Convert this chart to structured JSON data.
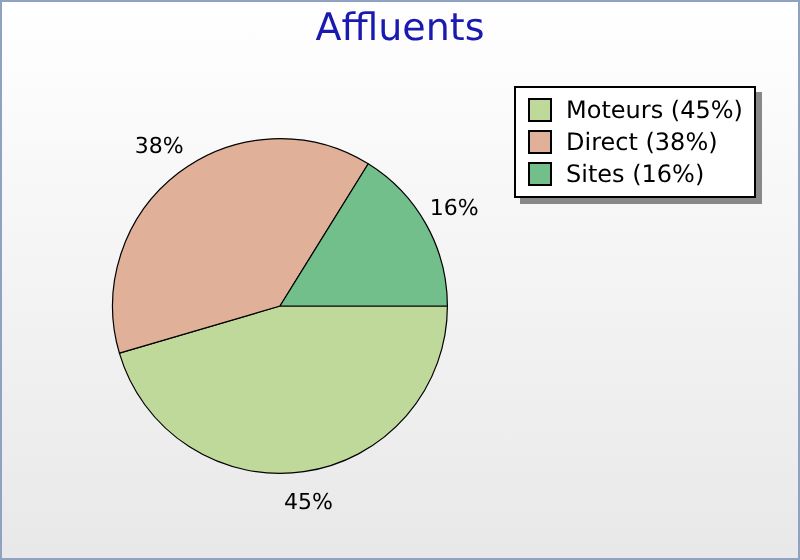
{
  "chart_data": {
    "type": "pie",
    "title": "Affluents",
    "categories": [
      "Moteurs (45%)",
      "Direct (38%)",
      "Sites (16%)"
    ],
    "values": [
      45,
      38,
      16
    ],
    "colors": [
      "#bfd99b",
      "#e0b098",
      "#72bf8c"
    ],
    "value_labels": [
      "45%",
      "38%",
      "16%"
    ],
    "legend": "top right"
  }
}
